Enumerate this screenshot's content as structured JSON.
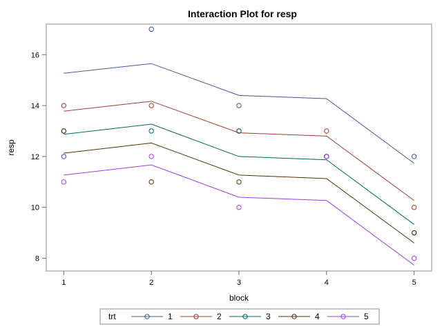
{
  "chart_data": {
    "type": "line",
    "title": "Interaction Plot for resp",
    "xlabel": "block",
    "ylabel": "resp",
    "x": [
      1,
      2,
      3,
      4,
      5
    ],
    "xlim": [
      0.8,
      5.2
    ],
    "ylim": [
      7.5,
      17.2
    ],
    "yticks": [
      8,
      10,
      12,
      14,
      16
    ],
    "grid": false,
    "legend": {
      "title": "trt",
      "placement": "bottom"
    },
    "series": [
      {
        "name": "1",
        "color": "#445694",
        "fitted": [
          15.27,
          15.65,
          14.4,
          14.27,
          11.73
        ],
        "observed": [
          12,
          17,
          14,
          12,
          12
        ]
      },
      {
        "name": "2",
        "color": "#A23A2E",
        "fitted": [
          13.78,
          14.17,
          12.93,
          12.8,
          10.27
        ],
        "observed": [
          14,
          14,
          13,
          13,
          10
        ]
      },
      {
        "name": "3",
        "color": "#01665E",
        "fitted": [
          12.87,
          13.27,
          12.0,
          11.87,
          9.33
        ],
        "observed": [
          13,
          13,
          13,
          12,
          9
        ]
      },
      {
        "name": "4",
        "color": "#543005",
        "fitted": [
          12.13,
          12.53,
          11.27,
          11.13,
          8.6
        ],
        "observed": [
          13,
          11,
          11,
          12,
          9
        ]
      },
      {
        "name": "5",
        "color": "#9D3CDB",
        "fitted": [
          11.27,
          11.67,
          10.4,
          10.27,
          7.73
        ],
        "observed": [
          11,
          12,
          10,
          12,
          8
        ]
      }
    ]
  }
}
